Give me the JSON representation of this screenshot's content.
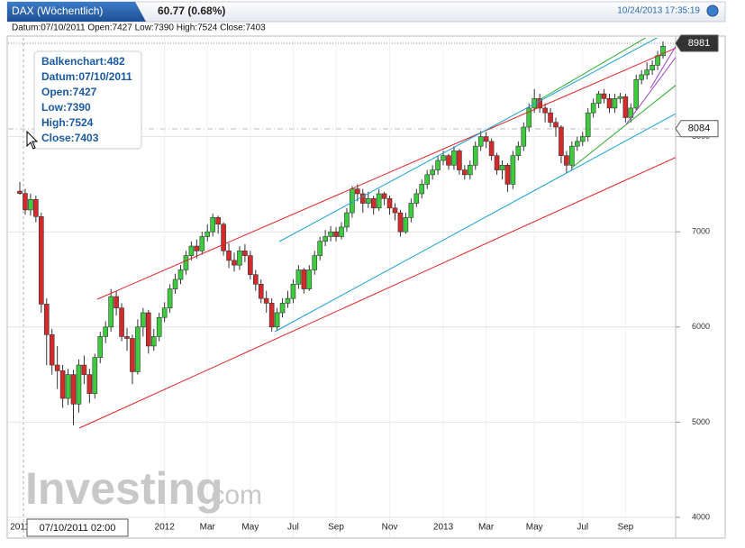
{
  "chart_data": {
    "type": "candlestick",
    "title": "DAX (Wöchentlich)",
    "change": "60.77 (0.68%)",
    "timestamp": "10/24/2013 17:35:19",
    "info_line": "Datum:07/10/2011 Open:7427 Low:7390 High:7524 Close:7403",
    "tooltip": [
      "Balkenchart:482",
      "Datum:07/10/2011",
      "Open:7427",
      "Low:7390",
      "High:7524",
      "Close:7403"
    ],
    "price_labels": [
      {
        "value": 8981,
        "label": "8981"
      },
      {
        "value": 8084,
        "label": "8084"
      }
    ],
    "cursor_date": "07/10/2011 02:00",
    "watermark": [
      "Investing",
      ".com"
    ],
    "ylim": [
      4000,
      9000
    ],
    "yticks": [
      4000,
      5000,
      6000,
      7000,
      8000
    ],
    "xticks": [
      {
        "value": 0,
        "label": "2011"
      },
      {
        "value": 27,
        "label": "2012"
      },
      {
        "value": 35,
        "label": "Mar"
      },
      {
        "value": 43,
        "label": "May"
      },
      {
        "value": 51,
        "label": "Jul"
      },
      {
        "value": 59,
        "label": "Sep"
      },
      {
        "value": 69,
        "label": "Nov"
      },
      {
        "value": 79,
        "label": "2013"
      },
      {
        "value": 87,
        "label": "Mar"
      },
      {
        "value": 96,
        "label": "May"
      },
      {
        "value": 105,
        "label": "Jul"
      },
      {
        "value": 113,
        "label": "Sep"
      }
    ],
    "up_color": "#3dcc3d",
    "down_color": "#d42a2a",
    "grid": true,
    "series": [
      {
        "open": [
          7427,
          7403,
          7230,
          7340,
          7160,
          6240,
          5920,
          5600,
          5540,
          5250,
          5500,
          5190,
          5600,
          5500,
          5300,
          5680,
          5900,
          6000,
          6320,
          6200,
          5900,
          5880,
          5530,
          6000,
          6150,
          5800,
          5900,
          6100,
          6200,
          6400,
          6500,
          6600,
          6750,
          6850,
          6800,
          6950,
          7000,
          7150,
          7080,
          6800,
          6700,
          6650,
          6800,
          6750,
          6550,
          6450,
          6300,
          6250,
          6000,
          6150,
          6250,
          6300,
          6450,
          6600,
          6400,
          6600,
          6750,
          6900,
          6950,
          7000,
          6950,
          7050,
          7200,
          7450,
          7400,
          7300,
          7350,
          7250,
          7400,
          7350,
          7250,
          7200,
          7000,
          7150,
          7300,
          7400,
          7500,
          7600,
          7650,
          7750,
          7800,
          7700,
          7850,
          7650,
          7600,
          7700,
          7900,
          8000,
          7950,
          7800,
          7650,
          7700,
          7500,
          7800,
          7900,
          8100,
          8300,
          8400,
          8300,
          8250,
          8150,
          8100,
          7800,
          7700,
          7900,
          7950,
          8000,
          8250,
          8350,
          8450,
          8400,
          8300,
          8400,
          8420,
          8200,
          8300,
          8600,
          8650,
          8700,
          8750,
          8850
        ],
        "high": [
          7524,
          7450,
          7400,
          7380,
          7200,
          6300,
          5980,
          5800,
          5600,
          5560,
          5550,
          5660,
          5700,
          5560,
          5720,
          5950,
          6060,
          6400,
          6380,
          6250,
          5990,
          5920,
          6080,
          6200,
          6180,
          5980,
          6150,
          6260,
          6450,
          6560,
          6650,
          6800,
          6900,
          6920,
          7000,
          7080,
          7190,
          7170,
          7100,
          6880,
          6780,
          6850,
          6870,
          6800,
          6600,
          6500,
          6380,
          6300,
          6200,
          6300,
          6380,
          6500,
          6650,
          6620,
          6650,
          6800,
          6950,
          7020,
          7060,
          7050,
          7100,
          7250,
          7480,
          7500,
          7450,
          7420,
          7380,
          7450,
          7420,
          7380,
          7300,
          7230,
          7200,
          7350,
          7450,
          7550,
          7650,
          7700,
          7800,
          7850,
          7820,
          7900,
          7870,
          7700,
          7750,
          7950,
          8060,
          8050,
          7980,
          7830,
          7750,
          7720,
          7850,
          7950,
          8150,
          8350,
          8500,
          8450,
          8350,
          8300,
          8200,
          8120,
          7850,
          7950,
          8000,
          8050,
          8300,
          8400,
          8480,
          8500,
          8450,
          8450,
          8460,
          8450,
          8350,
          8650,
          8700,
          8780,
          8800,
          8900,
          9000
        ],
        "low": [
          7390,
          7180,
          7170,
          7100,
          6150,
          5600,
          5500,
          5350,
          5150,
          5180,
          4970,
          5100,
          5400,
          5200,
          5250,
          5620,
          5830,
          5950,
          6120,
          5850,
          5750,
          5400,
          5500,
          5900,
          5720,
          5750,
          5850,
          6050,
          6150,
          6350,
          6450,
          6550,
          6700,
          6720,
          6760,
          6900,
          6950,
          6980,
          6750,
          6620,
          6580,
          6600,
          6680,
          6500,
          6380,
          6250,
          6150,
          5950,
          5970,
          6100,
          6200,
          6250,
          6400,
          6350,
          6380,
          6550,
          6700,
          6850,
          6900,
          6900,
          6920,
          7000,
          7150,
          7320,
          7200,
          7250,
          7180,
          7220,
          7280,
          7180,
          7120,
          6950,
          6980,
          7100,
          7260,
          7350,
          7450,
          7550,
          7600,
          7700,
          7650,
          7650,
          7600,
          7550,
          7550,
          7650,
          7850,
          7880,
          7750,
          7600,
          7550,
          7420,
          7450,
          7750,
          7850,
          8050,
          8250,
          8250,
          8150,
          8100,
          8000,
          7720,
          7620,
          7650,
          7850,
          7900,
          7950,
          8200,
          8300,
          8350,
          8250,
          8250,
          8350,
          8150,
          8150,
          8280,
          8550,
          8600,
          8650,
          8700,
          8820
        ],
        "close": [
          7403,
          7230,
          7340,
          7160,
          6240,
          5920,
          5600,
          5540,
          5250,
          5500,
          5190,
          5600,
          5500,
          5300,
          5680,
          5900,
          6000,
          6320,
          6200,
          5900,
          5880,
          5530,
          6000,
          6150,
          5800,
          5900,
          6100,
          6200,
          6400,
          6500,
          6600,
          6750,
          6850,
          6800,
          6950,
          7000,
          7150,
          7080,
          6800,
          6700,
          6650,
          6800,
          6750,
          6550,
          6450,
          6300,
          6250,
          6000,
          6150,
          6250,
          6300,
          6450,
          6600,
          6400,
          6600,
          6750,
          6900,
          6950,
          7000,
          6950,
          7050,
          7200,
          7450,
          7400,
          7300,
          7350,
          7250,
          7400,
          7350,
          7250,
          7200,
          7000,
          7150,
          7300,
          7400,
          7500,
          7600,
          7650,
          7750,
          7800,
          7700,
          7850,
          7650,
          7600,
          7700,
          7900,
          8000,
          7950,
          7800,
          7650,
          7700,
          7500,
          7800,
          7900,
          8100,
          8300,
          8400,
          8300,
          8250,
          8150,
          8100,
          7800,
          7700,
          7900,
          7950,
          8000,
          8250,
          8350,
          8450,
          8400,
          8300,
          8400,
          8420,
          8200,
          8300,
          8600,
          8650,
          8700,
          8750,
          8850,
          8950
        ]
      }
    ]
  }
}
